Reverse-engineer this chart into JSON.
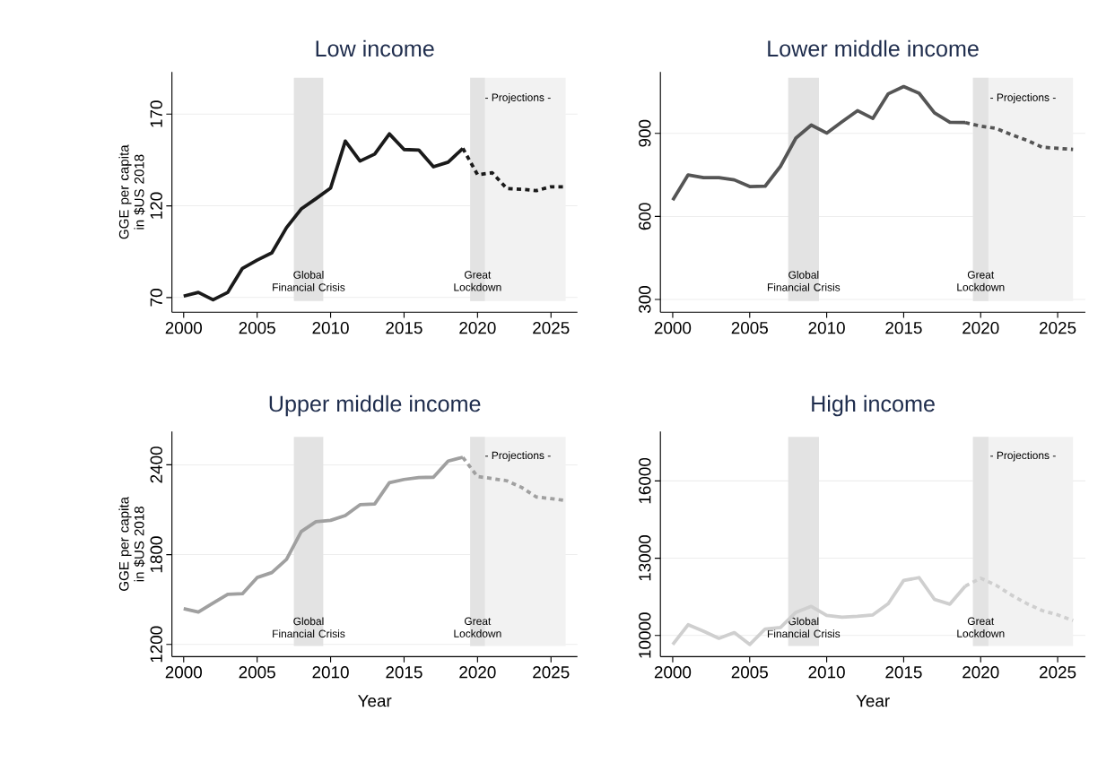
{
  "chart_data": [
    {
      "type": "line",
      "title": "Low income",
      "ylabel": "GGE per capita in $US 2018",
      "xlim": [
        1999.2,
        2026.8
      ],
      "ylim": [
        62,
        193
      ],
      "xticks": [
        2000,
        2005,
        2010,
        2015,
        2020,
        2025
      ],
      "yticks": [
        70,
        120,
        170
      ],
      "grid": "y",
      "series": [
        {
          "color": "#1a1a1a",
          "line_style": "solid",
          "x": [
            2000,
            2001,
            2002,
            2003,
            2004,
            2005,
            2006,
            2007,
            2008,
            2009,
            2010,
            2011,
            2012,
            2013,
            2014,
            2015,
            2016,
            2017,
            2018,
            2019
          ],
          "values": [
            70.8,
            72.8,
            68.8,
            72.8,
            85.9,
            90.4,
            94.4,
            108.1,
            118.3,
            123.9,
            129.7,
            155.3,
            144.4,
            148.2,
            159.2,
            150.7,
            150.4,
            141.3,
            143.8,
            151.3
          ]
        },
        {
          "color": "#1a1a1a",
          "line_style": "dashed",
          "x": [
            2019,
            2020,
            2021,
            2022,
            2023,
            2024,
            2025,
            2026
          ],
          "values": [
            151.3,
            137,
            138,
            129.4,
            129,
            128.3,
            130.4,
            130.4
          ]
        }
      ],
      "bands": [
        {
          "axis": "x",
          "from": 2007.5,
          "to": 2009.5,
          "label": "Global Financial Crisis",
          "color": "#e3e3e3"
        },
        {
          "axis": "x",
          "from": 2019.5,
          "to": 2026,
          "label": "- Projections -",
          "color": "#f2f2f2"
        },
        {
          "axis": "x",
          "from": 2019.5,
          "to": 2020.5,
          "label": "Great Lockdown",
          "color": "#e3e3e3"
        }
      ]
    },
    {
      "type": "line",
      "title": "Lower middle income",
      "xlim": [
        1999.2,
        2026.8
      ],
      "ylim": [
        254,
        1122
      ],
      "xticks": [
        2000,
        2005,
        2010,
        2015,
        2020,
        2025
      ],
      "yticks": [
        300,
        600,
        900
      ],
      "grid": "y",
      "series": [
        {
          "color": "#555555",
          "line_style": "solid",
          "x": [
            2000,
            2001,
            2002,
            2003,
            2004,
            2005,
            2006,
            2007,
            2008,
            2009,
            2010,
            2011,
            2012,
            2013,
            2014,
            2015,
            2016,
            2017,
            2018,
            2019
          ],
          "values": [
            659,
            750,
            740,
            740,
            732,
            708,
            709,
            781,
            883,
            930,
            901,
            942,
            982,
            954,
            1043,
            1069,
            1045,
            974,
            940,
            939
          ]
        },
        {
          "color": "#555555",
          "line_style": "dashed",
          "x": [
            2019,
            2020,
            2021,
            2022,
            2023,
            2024,
            2025,
            2026
          ],
          "values": [
            939,
            926,
            918,
            895,
            875,
            850,
            846,
            842
          ]
        }
      ],
      "bands": [
        {
          "axis": "x",
          "from": 2007.5,
          "to": 2009.5,
          "label": "Global Financial Crisis",
          "color": "#e3e3e3"
        },
        {
          "axis": "x",
          "from": 2019.5,
          "to": 2026,
          "label": "- Projections -",
          "color": "#f2f2f2"
        },
        {
          "axis": "x",
          "from": 2019.5,
          "to": 2020.5,
          "label": "Great Lockdown",
          "color": "#e3e3e3"
        }
      ]
    },
    {
      "type": "line",
      "title": "Upper middle income",
      "xlabel": "Year",
      "ylabel": "GGE per capita in $US 2018",
      "xlim": [
        1999.2,
        2026.8
      ],
      "ylim": [
        1119,
        2622
      ],
      "xticks": [
        2000,
        2005,
        2010,
        2015,
        2020,
        2025
      ],
      "yticks": [
        1200,
        1800,
        2400
      ],
      "grid": "y",
      "series": [
        {
          "color": "#a0a0a0",
          "line_style": "solid",
          "x": [
            2000,
            2001,
            2002,
            2003,
            2004,
            2005,
            2006,
            2007,
            2008,
            2009,
            2010,
            2011,
            2012,
            2013,
            2014,
            2015,
            2016,
            2017,
            2018,
            2019
          ],
          "values": [
            1439,
            1417,
            1477,
            1535,
            1539,
            1647,
            1680,
            1769,
            1954,
            2020,
            2029,
            2061,
            2133,
            2138,
            2280,
            2302,
            2315,
            2317,
            2425,
            2450
          ]
        },
        {
          "color": "#a0a0a0",
          "line_style": "dashed",
          "x": [
            2019,
            2020,
            2021,
            2022,
            2023,
            2024,
            2025,
            2026
          ],
          "values": [
            2450,
            2321,
            2308,
            2293,
            2249,
            2185,
            2174,
            2161
          ]
        }
      ],
      "bands": [
        {
          "axis": "x",
          "from": 2007.5,
          "to": 2009.5,
          "label": "Global Financial Crisis",
          "color": "#e3e3e3"
        },
        {
          "axis": "x",
          "from": 2019.5,
          "to": 2026,
          "label": "- Projections -",
          "color": "#f2f2f2"
        },
        {
          "axis": "x",
          "from": 2019.5,
          "to": 2020.5,
          "label": "Great Lockdown",
          "color": "#e3e3e3"
        }
      ]
    },
    {
      "type": "line",
      "title": "High income",
      "xlabel": "Year",
      "xlim": [
        1999.2,
        2026.8
      ],
      "ylim": [
        9179,
        17917
      ],
      "xticks": [
        2000,
        2005,
        2010,
        2015,
        2020,
        2025
      ],
      "yticks": [
        10000,
        13000,
        16000
      ],
      "grid": "y",
      "series": [
        {
          "color": "#cfcfcf",
          "line_style": "solid",
          "x": [
            2000,
            2001,
            2002,
            2003,
            2004,
            2005,
            2006,
            2007,
            2008,
            2009,
            2010,
            2011,
            2012,
            2013,
            2014,
            2015,
            2016,
            2017,
            2018,
            2019
          ],
          "values": [
            9650,
            10416,
            10164,
            9890,
            10110,
            9650,
            10252,
            10307,
            10900,
            11128,
            10777,
            10712,
            10745,
            10800,
            11237,
            12135,
            12245,
            11402,
            11215,
            11916
          ]
        },
        {
          "color": "#cfcfcf",
          "line_style": "dashed",
          "x": [
            2019,
            2020,
            2021,
            2022,
            2023,
            2024,
            2025,
            2026
          ],
          "values": [
            11916,
            12223,
            11949,
            11566,
            11237,
            10964,
            10800,
            10580
          ]
        }
      ],
      "bands": [
        {
          "axis": "x",
          "from": 2007.5,
          "to": 2009.5,
          "label": "Global Financial Crisis",
          "color": "#e3e3e3"
        },
        {
          "axis": "x",
          "from": 2019.5,
          "to": 2026,
          "label": "- Projections -",
          "color": "#f2f2f2"
        },
        {
          "axis": "x",
          "from": 2019.5,
          "to": 2020.5,
          "label": "Great Lockdown",
          "color": "#e3e3e3"
        }
      ]
    }
  ]
}
